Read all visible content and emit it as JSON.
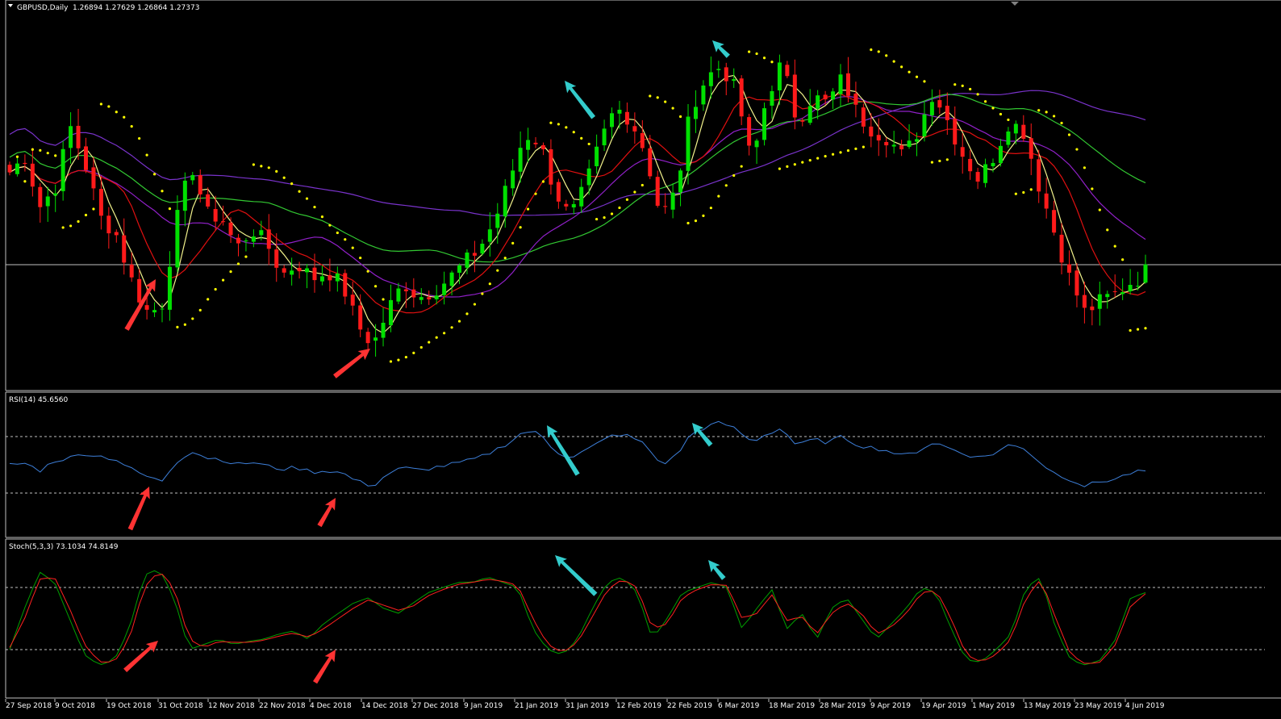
{
  "colors": {
    "background": "#000000",
    "bull": "#00e000",
    "bear": "#ff1a1a",
    "psar": "#ffff00",
    "ma_fast": "#f2f28c",
    "ma_mid": "#e01010",
    "ma_slow": "#9020c8",
    "ma_green": "#32c832",
    "ma_long": "#7a33cc",
    "rsi": "#3d7fd9",
    "stoch_main": "#00a000",
    "stoch_signal": "#ff2020",
    "arrow_buy": "#ff3333",
    "arrow_sell": "#33cccc",
    "frame": "#c0c0c0",
    "level": "#c0c0c0"
  },
  "main_header": {
    "symbol": "GBPUSD,Daily",
    "ohlc": "1.26894 1.27629 1.26864 1.27373"
  },
  "rsi_header": {
    "label": "RSI(14) 45.6560"
  },
  "stoch_header": {
    "label": "Stoch(5,3,3) 73.1034 74.8149"
  },
  "x_labels": [
    "27 Sep 2018",
    "9 Oct 2018",
    "19 Oct 2018",
    "31 Oct 2018",
    "12 Nov 2018",
    "22 Nov 2018",
    "4 Dec 2018",
    "14 Dec 2018",
    "27 Dec 2018",
    "9 Jan 2019",
    "21 Jan 2019",
    "31 Jan 2019",
    "12 Feb 2019",
    "22 Feb 2019",
    "6 Mar 2019",
    "18 Mar 2019",
    "28 Mar 2019",
    "9 Apr 2019",
    "19 Apr 2019",
    "1 May 2019",
    "13 May 2019",
    "23 May 2019",
    "4 Jun 2019"
  ],
  "chart_data": [
    {
      "type": "candlestick",
      "title": "GBPUSD,Daily",
      "last_ohlc": [
        1.26894,
        1.27629,
        1.26864,
        1.27373
      ],
      "horizontal_line": 1.2737,
      "ylim": [
        1.2435,
        1.3395
      ],
      "close_path": [
        1.298,
        1.302,
        1.289,
        1.294,
        1.31,
        1.3,
        1.286,
        1.282,
        1.27,
        1.2615,
        1.262,
        1.285,
        1.3,
        1.287,
        1.286,
        1.278,
        1.283,
        1.279,
        1.271,
        1.274,
        1.27,
        1.272,
        1.268,
        1.2575,
        1.2525,
        1.262,
        1.269,
        1.265,
        1.267,
        1.27,
        1.274,
        1.278,
        1.285,
        1.296,
        1.308,
        1.306,
        1.293,
        1.286,
        1.294,
        1.306,
        1.315,
        1.312,
        1.303,
        1.286,
        1.293,
        1.315,
        1.323,
        1.326,
        1.319,
        1.3,
        1.318,
        1.327,
        1.311,
        1.318,
        1.316,
        1.323,
        1.313,
        1.309,
        1.307,
        1.302,
        1.309,
        1.3195,
        1.311,
        1.302,
        1.296,
        1.3025,
        1.3115,
        1.3085,
        1.294,
        1.282,
        1.27,
        1.261,
        1.264,
        1.266,
        1.269,
        1.271
      ],
      "parabolic_sar": "yellow dots",
      "moving_averages": [
        "yellow",
        "red",
        "purple",
        "green",
        "violet"
      ]
    },
    {
      "type": "line",
      "title": "RSI(14) 45.6560",
      "value": 45.656,
      "levels": [
        70,
        30
      ],
      "ylim": [
        0,
        100
      ],
      "values": [
        50,
        51,
        46,
        53,
        55,
        58,
        56,
        54,
        47,
        42,
        38,
        52,
        60,
        55,
        54,
        50,
        52,
        49,
        47,
        48,
        45,
        46,
        44,
        38,
        35,
        44,
        48,
        46,
        48,
        50,
        52,
        55,
        60,
        66,
        74,
        72,
        60,
        55,
        60,
        66,
        72,
        70,
        64,
        50,
        56,
        72,
        77,
        80,
        75,
        66,
        72,
        76,
        63,
        68,
        66,
        70,
        64,
        62,
        60,
        56,
        60,
        66,
        62,
        58,
        55,
        58,
        64,
        62,
        52,
        44,
        40,
        35,
        38,
        40,
        44,
        45.66
      ]
    },
    {
      "type": "line",
      "title": "Stoch(5,3,3) 73.1034 74.8149",
      "main_value": 73.1034,
      "signal_value": 74.8149,
      "levels": [
        80,
        20
      ],
      "ylim": [
        0,
        100
      ],
      "main": [
        20,
        60,
        95,
        85,
        50,
        15,
        5,
        10,
        40,
        92,
        98,
        70,
        20,
        25,
        30,
        25,
        28,
        30,
        35,
        38,
        30,
        45,
        55,
        65,
        70,
        60,
        55,
        65,
        75,
        80,
        85,
        85,
        90,
        85,
        80,
        40,
        20,
        15,
        30,
        60,
        85,
        90,
        75,
        30,
        50,
        75,
        80,
        85,
        80,
        40,
        60,
        78,
        40,
        55,
        30,
        60,
        70,
        50,
        30,
        45,
        60,
        80,
        75,
        40,
        10,
        8,
        20,
        35,
        80,
        90,
        40,
        10,
        5,
        10,
        30,
        70,
        75
      ],
      "signal": [
        22,
        50,
        88,
        90,
        60,
        25,
        8,
        8,
        30,
        80,
        96,
        80,
        30,
        22,
        28,
        27,
        27,
        29,
        33,
        36,
        32,
        40,
        50,
        60,
        68,
        63,
        58,
        62,
        72,
        78,
        83,
        85,
        88,
        86,
        82,
        50,
        25,
        17,
        27,
        52,
        78,
        88,
        80,
        40,
        45,
        70,
        78,
        83,
        82,
        50,
        55,
        73,
        48,
        52,
        35,
        55,
        65,
        55,
        35,
        42,
        55,
        75,
        77,
        50,
        15,
        8,
        15,
        30,
        70,
        88,
        50,
        15,
        6,
        8,
        25,
        62,
        74
      ]
    }
  ]
}
